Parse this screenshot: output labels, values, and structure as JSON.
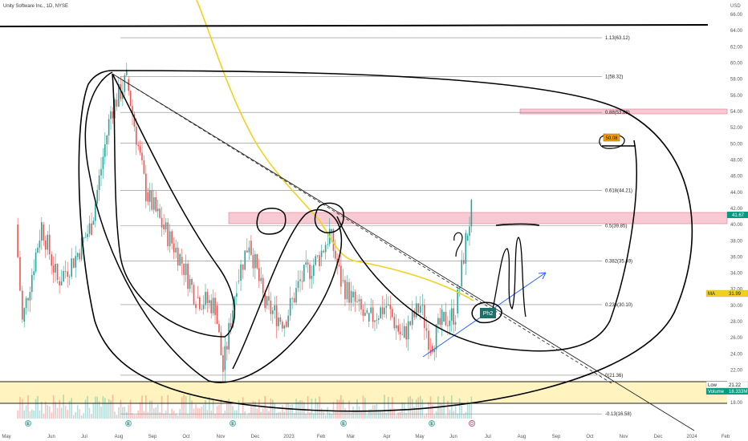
{
  "header": {
    "title": "Unity Software Inc., 1D, NYSE"
  },
  "chart_data": {
    "type": "candlestick",
    "title": "Unity Software Inc., 1D, NYSE",
    "y_axis": {
      "label": "USD",
      "ticks": [
        18,
        20,
        22,
        24,
        26,
        28,
        30,
        32,
        34,
        36,
        38,
        40,
        42,
        44,
        46,
        48,
        50,
        52,
        54,
        56,
        58,
        60,
        62,
        64,
        66
      ],
      "range": [
        16,
        67
      ]
    },
    "x_axis": {
      "ticks": [
        "May",
        "Jun",
        "Jul",
        "Aug",
        "Sep",
        "Oct",
        "Nov",
        "Dec",
        "2023",
        "Feb",
        "Mar",
        "Apr",
        "May",
        "Jun",
        "Jul",
        "Aug",
        "Sep",
        "Oct",
        "Nov",
        "Dec",
        "2024",
        "Feb"
      ]
    },
    "price_series_approx": {
      "dates": [
        "2022-05-09",
        "2022-05-15",
        "2022-06-01",
        "2022-06-15",
        "2022-07-01",
        "2022-07-15",
        "2022-08-01",
        "2022-08-15",
        "2022-09-01",
        "2022-09-15",
        "2022-10-01",
        "2022-10-15",
        "2022-11-01",
        "2022-11-08",
        "2022-11-20",
        "2022-12-01",
        "2022-12-15",
        "2023-01-01",
        "2023-01-15",
        "2023-02-01",
        "2023-02-10",
        "2023-02-20",
        "2023-03-01",
        "2023-03-15",
        "2023-04-01",
        "2023-04-15",
        "2023-05-01",
        "2023-05-10",
        "2023-05-20",
        "2023-06-01",
        "2023-06-10",
        "2023-06-15"
      ],
      "close": [
        40,
        28,
        40,
        33,
        36,
        40,
        54,
        58,
        44,
        40,
        36,
        31,
        30,
        22,
        33,
        38,
        30,
        28,
        33,
        36,
        39,
        33,
        31,
        28,
        30,
        26,
        30,
        25,
        28,
        29,
        38,
        41.67
      ]
    },
    "fibonacci_levels": [
      {
        "label": "1.13(63.12)",
        "value": 63.12
      },
      {
        "label": "1(58.32)",
        "value": 58.32
      },
      {
        "label": "0.88(53.88)",
        "value": 53.88
      },
      {
        "label": "50.08",
        "value": 50.08
      },
      {
        "label": "0.618(44.21)",
        "value": 44.21
      },
      {
        "label": "0.5(39.85)",
        "value": 39.85
      },
      {
        "label": "0.382(35.49)",
        "value": 35.49
      },
      {
        "label": "0.236(30.10)",
        "value": 30.1
      },
      {
        "label": "0(21.36)",
        "value": 21.36
      },
      {
        "label": "-0.13(16.58)",
        "value": 16.58
      }
    ],
    "price_tags": [
      {
        "label": "41.67",
        "value": 41.67,
        "color": "#089981"
      },
      {
        "label": "MA",
        "value": "31.99",
        "color": "#f2d11d"
      },
      {
        "label": "Low",
        "value": "21.22",
        "color": "#ffffff"
      },
      {
        "label": "Volume",
        "value": "18.333M",
        "color": "#089981"
      }
    ],
    "event_markers": [
      "E",
      "E",
      "E",
      "E",
      "E",
      "D"
    ],
    "annotations": [
      "Ph2"
    ],
    "colors": {
      "up": "#26a69a",
      "down": "#ef5350",
      "moving_average": "#f2d11d",
      "zone_pink": "#f7c9d3",
      "zone_yellow": "#fff3bf",
      "trend_arrow": "#2962ff",
      "drawing": "#000000"
    },
    "grid": false
  }
}
